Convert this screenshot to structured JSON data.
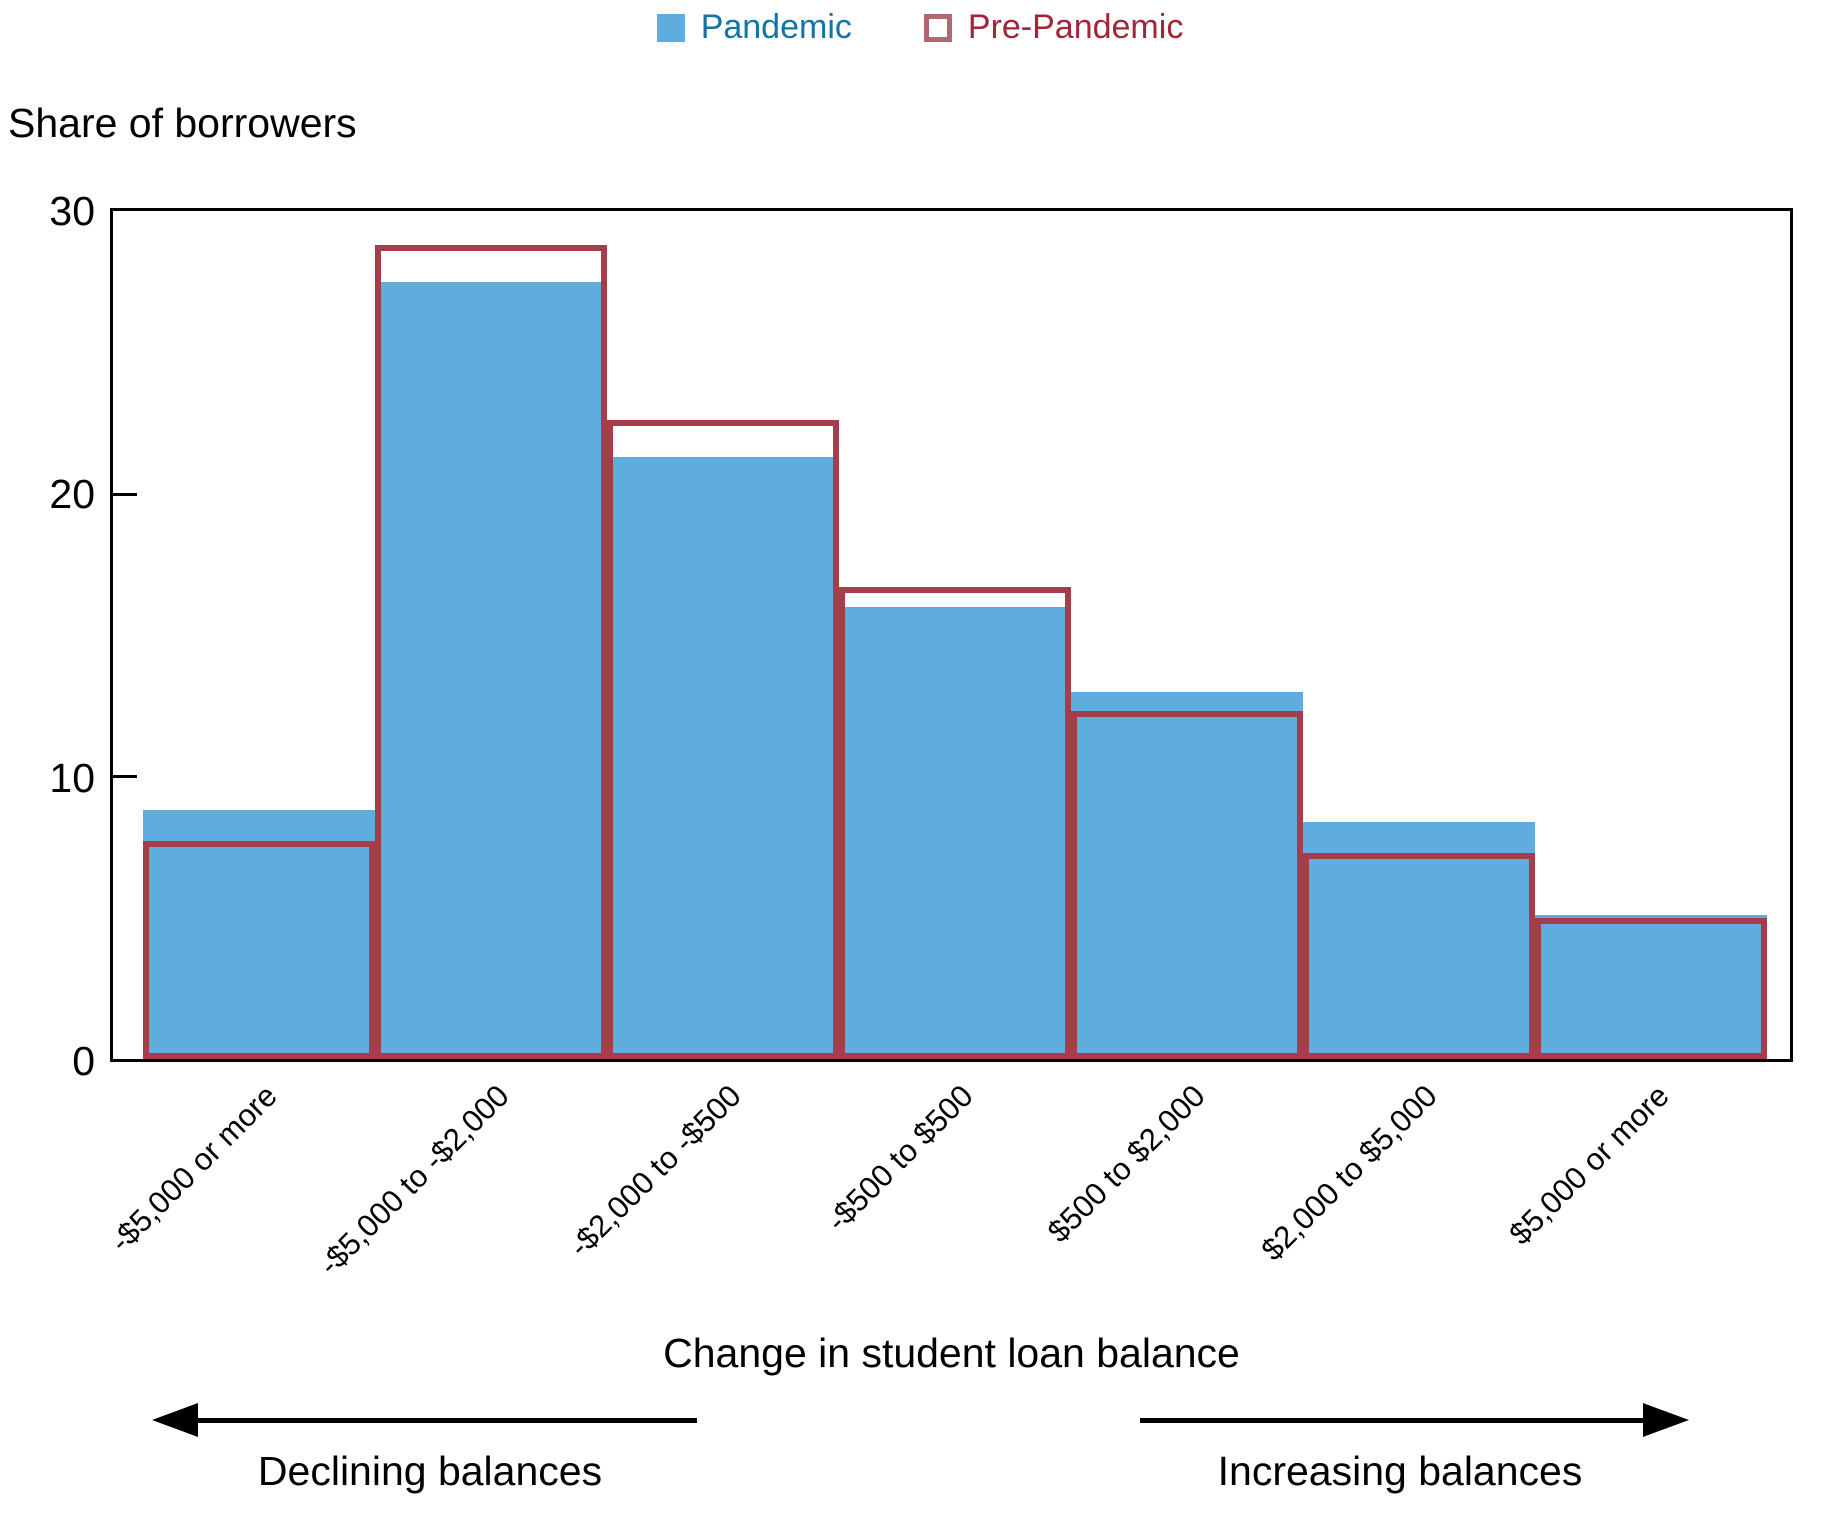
{
  "legend": {
    "items": [
      {
        "label": "Pandemic",
        "swatch": "filled",
        "swatch_color": "#5FACDF",
        "label_color": "#1274A8"
      },
      {
        "label": "Pre-Pandemic",
        "swatch": "outline",
        "swatch_color": "#B26873",
        "label_color": "#A32638"
      }
    ]
  },
  "chart": {
    "title": "Share of borrowers",
    "y_tick_labels": [
      "0",
      "10",
      "20",
      "30"
    ],
    "x_title": "Change in student loan balance",
    "left_annotation": "Declining balances",
    "right_annotation": "Increasing balances"
  },
  "chart_data": {
    "type": "bar",
    "title": "Share of borrowers",
    "xlabel": "Change in student loan balance",
    "ylabel": "Share of borrowers",
    "ylim": [
      0,
      30
    ],
    "y_ticks": [
      0,
      10,
      20,
      30
    ],
    "grid": false,
    "legend_position": "top-center",
    "categories": [
      "-$5,000 or more",
      "-$5,000 to -$2,000",
      "-$2,000 to -$500",
      "-$500 to $500",
      "$500 to $2,000",
      "$2,000 to $5,000",
      "$5,000 or more"
    ],
    "series": [
      {
        "name": "Pandemic",
        "style": "filled",
        "color": "#5FACDF",
        "values": [
          8.8,
          27.5,
          21.3,
          16.0,
          13.0,
          8.4,
          5.1
        ]
      },
      {
        "name": "Pre-Pandemic",
        "style": "outline",
        "color": "#A63D4A",
        "values": [
          7.7,
          28.8,
          22.6,
          16.7,
          12.3,
          7.3,
          5.0
        ]
      }
    ]
  }
}
